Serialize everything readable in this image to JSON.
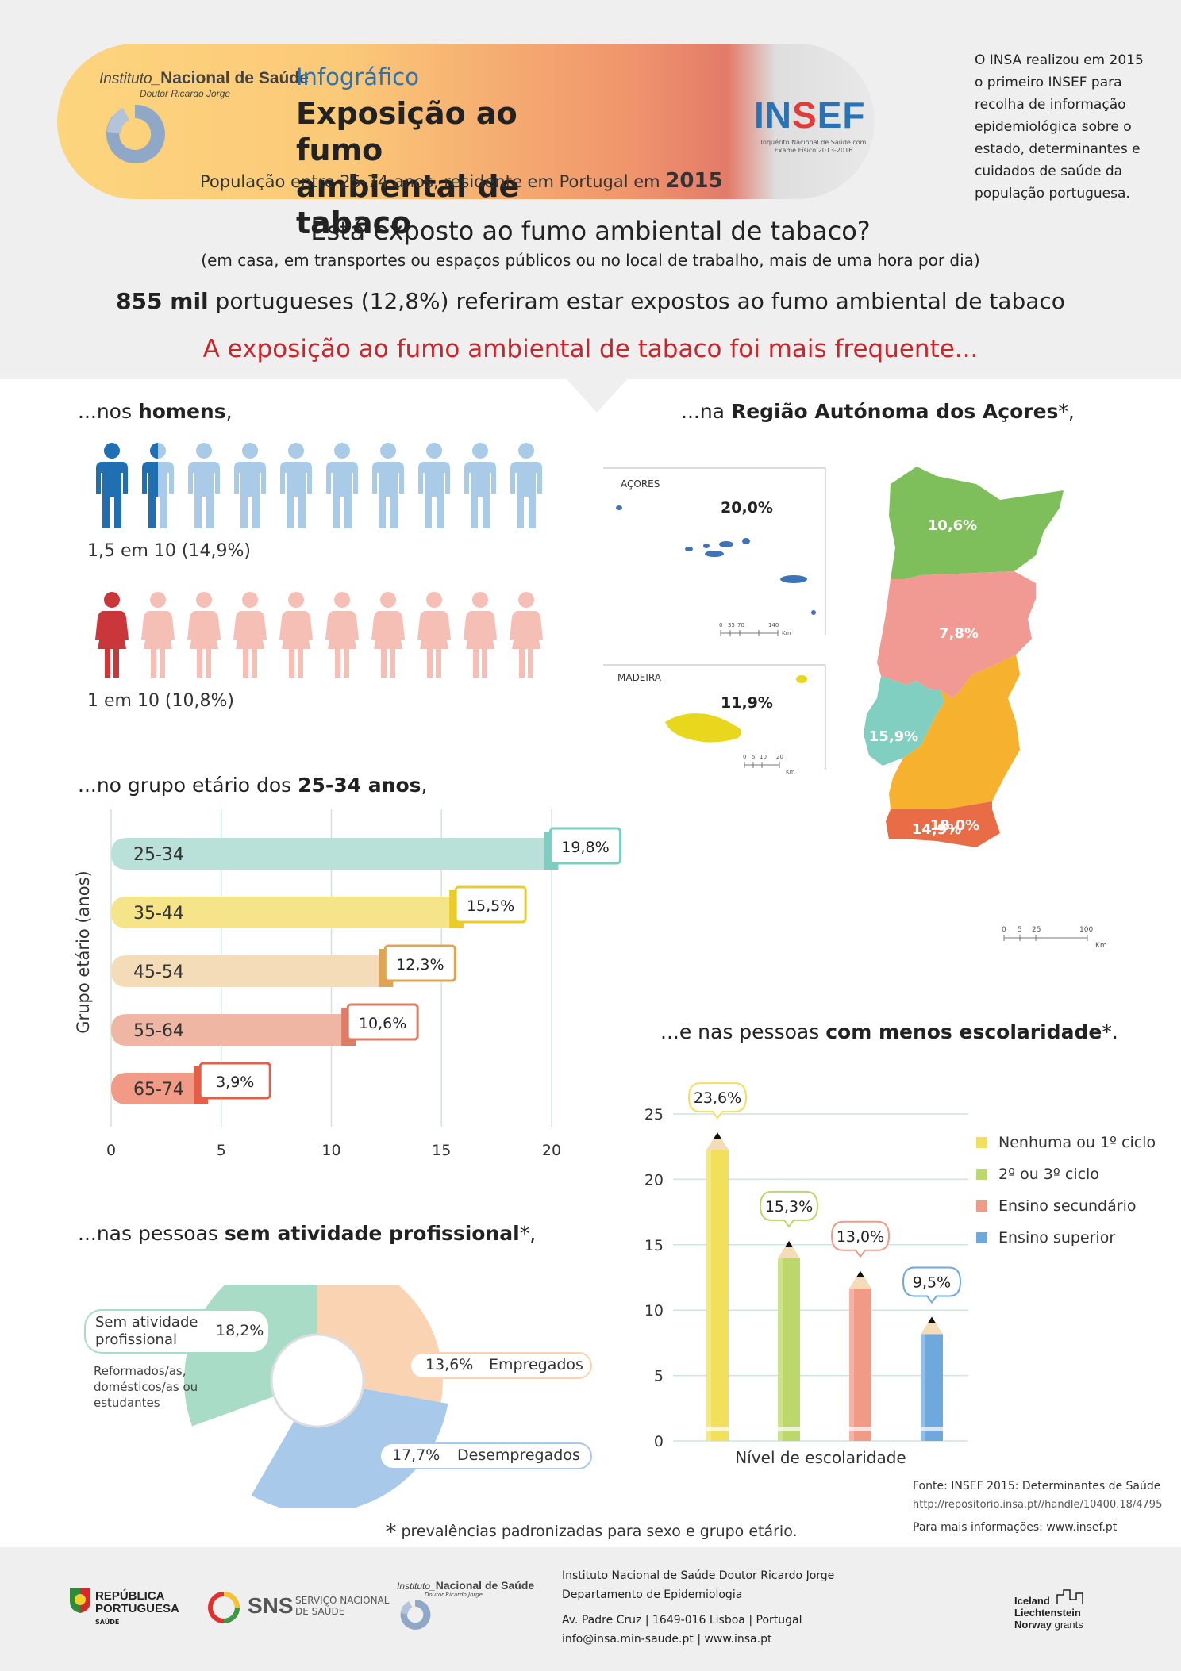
{
  "header": {
    "institute_prefix": "Instituto_",
    "institute_name": "Nacional de Saúde",
    "institute_sub": "Doutor Ricardo Jorge",
    "label": "Infográfico",
    "title_line1": "Exposição ao fumo",
    "title_line2": "ambiental de tabaco",
    "population_text": "População entre 25-74 anos, residente em Portugal em",
    "population_year": "2015",
    "insef_logo_a": "IN",
    "insef_logo_b": "S",
    "insef_logo_c": "EF",
    "insef_sub": "Inquérito Nacional de Saúde com Exame Físico 2013-2016",
    "side_note": "O INSA realizou em 2015 o primeiro INSEF para recolha de informação epidemiológica sobre o estado, determinantes e cuidados de saúde da população portuguesa."
  },
  "intro": {
    "question": "Está exposto ao fumo ambiental de tabaco?",
    "question_sub": "(em casa, em transportes ou espaços públicos ou no local de trabalho, mais de uma hora por dia)",
    "stat_bold": "855 mil",
    "stat_rest": " portugueses (12,8%) referiram estar expostos ao fumo ambiental de tabaco",
    "freq_title": "A exposição ao fumo ambiental de tabaco foi mais frequente..."
  },
  "sex": {
    "title_pre": "...nos ",
    "title_bold": "homens",
    "title_post": ",",
    "men_caption": "1,5 em 10 (14,9%)",
    "women_caption": "1 em 10 (10,8%)",
    "colors": {
      "men_dark": "#1f6fb2",
      "men_light": "#a9cbe8",
      "women_dark": "#c9373a",
      "women_light": "#f6bfb5"
    }
  },
  "region": {
    "title_pre": "...na ",
    "title_bold": "Região Autónoma dos Açores",
    "title_post": "*,",
    "azores_label": "AÇORES",
    "azores_value": "20,0%",
    "madeira_label": "MADEIRA",
    "madeira_value": "11,9%",
    "norte_value": "10,6%",
    "centro_value": "7,8%",
    "lisboa_value": "15,9%",
    "alentejo_value": "18,0%",
    "algarve_value": "14,9%",
    "scale_azores": [
      "0",
      "35",
      "70",
      "140"
    ],
    "scale_madeira": [
      "0",
      "5",
      "10",
      "20"
    ],
    "scale_mainland": [
      "0",
      "5",
      "25",
      "100"
    ],
    "scale_unit": "Km"
  },
  "age": {
    "title_pre": "...no grupo etário dos ",
    "title_bold": "25-34 anos",
    "title_post": ","
  },
  "occupation": {
    "title_pre": "...nas pessoas ",
    "title_bold": "sem atividade profissional",
    "title_post": "*,",
    "inactive_label": "Sem atividade profissional",
    "inactive_value": "18,2%",
    "inactive_note": "Reformados/as, domésticos/as ou estudantes",
    "employed_value": "13,6%",
    "employed_label": "Empregados",
    "unemployed_value": "17,7%",
    "unemployed_label": "Desempregados"
  },
  "education": {
    "title_pre": "...e nas pessoas ",
    "title_bold": "com menos escolaridade",
    "title_post": "*."
  },
  "chart_data": [
    {
      "type": "bar",
      "orientation": "horizontal",
      "title": "...no grupo etário dos 25-34 anos,",
      "ylabel": "Grupo etário (anos)",
      "xlabel": "",
      "categories": [
        "25-34",
        "35-44",
        "45-54",
        "55-64",
        "65-74"
      ],
      "values": [
        19.8,
        15.5,
        12.3,
        10.6,
        3.9
      ],
      "value_labels": [
        "19,8%",
        "15,5%",
        "12,3%",
        "10,6%",
        "3,9%"
      ],
      "colors": [
        "#b9e1d9",
        "#f5e48a",
        "#f5dcb8",
        "#eeb6a3",
        "#f19a86"
      ],
      "accent_colors": [
        "#7ecdc0",
        "#e9cc2c",
        "#e0a552",
        "#de7c67",
        "#e45f47"
      ],
      "xlim": [
        0,
        20
      ],
      "xticks": [
        "0",
        "5",
        "10",
        "15",
        "20"
      ],
      "grid": true
    },
    {
      "type": "pie",
      "subtype": "donut",
      "title": "...nas pessoas sem atividade profissional*,",
      "categories": [
        "Sem atividade profissional",
        "Empregados",
        "Desempregados"
      ],
      "values": [
        18.2,
        13.6,
        17.7
      ],
      "value_labels": [
        "18,2%",
        "13,6%",
        "17,7%"
      ],
      "colors": [
        "#a9dcc7",
        "#fad4b2",
        "#a9c9ea"
      ]
    },
    {
      "type": "bar",
      "subtype": "pencil",
      "title": "...e nas pessoas com menos escolaridade*.",
      "xlabel": "Nível de escolaridade",
      "ylabel": "",
      "categories": [
        "Nenhuma ou 1º ciclo",
        "2º ou 3º ciclo",
        "Ensino secundário",
        "Ensino superior"
      ],
      "values": [
        23.6,
        15.3,
        13.0,
        9.5
      ],
      "value_labels": [
        "23,6%",
        "15,3%",
        "13,0%",
        "9,5%"
      ],
      "colors": [
        "#f2df5b",
        "#bcd76b",
        "#f19a86",
        "#6fa8dc"
      ],
      "ylim": [
        0,
        25
      ],
      "yticks": [
        "0",
        "5",
        "10",
        "15",
        "20",
        "25"
      ],
      "grid": true,
      "legend": "right"
    }
  ],
  "footer": {
    "source_line1": "Fonte: INSEF 2015: Determinantes de Saúde",
    "source_url": "http://repositorio.insa.pt//handle/10400.18/4795",
    "source_more": "Para mais informações: www.insef.pt",
    "asterisk": "*",
    "asterisk_note": " prevalências padronizadas para sexo e grupo etário.",
    "rep_line1": "REPÚBLICA",
    "rep_line2": "PORTUGUESA",
    "rep_sub": "SAÚDE",
    "sns": "SNS",
    "sns_sub1": "SERVIÇO NACIONAL",
    "sns_sub2": "DE SAÚDE",
    "inst_prefix": "Instituto_",
    "inst_name": "Nacional de Saúde",
    "inst_sub": "Doutor Ricardo Jorge",
    "contact_line1": "Instituto Nacional de Saúde Doutor Ricardo Jorge",
    "contact_line2": "Departamento de Epidemiologia",
    "contact_line3": "Av. Padre Cruz  |  1649-016  Lisboa  |  Portugal",
    "contact_line4": "info@insa.min-saude.pt  |  www.insa.pt",
    "grants_1": "Iceland",
    "grants_2": "Liechtenstein",
    "grants_3": "Norway",
    "grants_4": "grants"
  }
}
